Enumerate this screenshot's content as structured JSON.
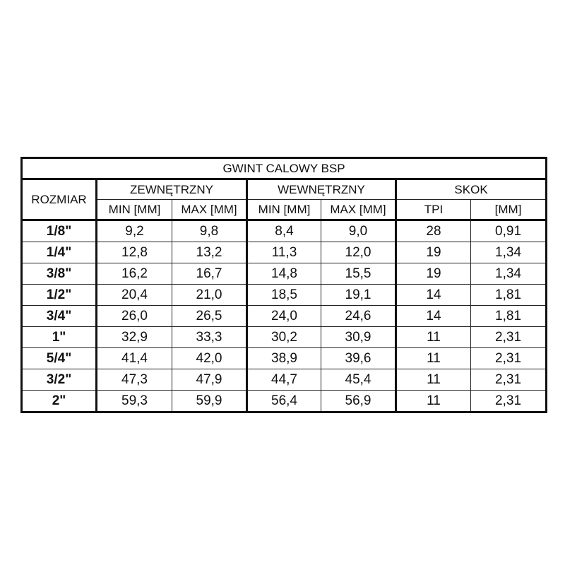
{
  "table": {
    "title": "GWINT CALOWY BSP",
    "size_header": "ROZMIAR",
    "groups": [
      "ZEWNĘTRZNY",
      "WEWNĘTRZNY",
      "SKOK"
    ],
    "subheaders": [
      "MIN [MM]",
      "MAX [MM]",
      "MIN [MM]",
      "MAX [MM]",
      "TPI",
      "[MM]"
    ],
    "rows": [
      [
        "1/8\"",
        "9,2",
        "9,8",
        "8,4",
        "9,0",
        "28",
        "0,91"
      ],
      [
        "1/4\"",
        "12,8",
        "13,2",
        "11,3",
        "12,0",
        "19",
        "1,34"
      ],
      [
        "3/8\"",
        "16,2",
        "16,7",
        "14,8",
        "15,5",
        "19",
        "1,34"
      ],
      [
        "1/2\"",
        "20,4",
        "21,0",
        "18,5",
        "19,1",
        "14",
        "1,81"
      ],
      [
        "3/4\"",
        "26,0",
        "26,5",
        "24,0",
        "24,6",
        "14",
        "1,81"
      ],
      [
        "1\"",
        "32,9",
        "33,3",
        "30,2",
        "30,9",
        "11",
        "2,31"
      ],
      [
        "5/4\"",
        "41,4",
        "42,0",
        "38,9",
        "39,6",
        "11",
        "2,31"
      ],
      [
        "3/2\"",
        "47,3",
        "47,9",
        "44,7",
        "45,4",
        "11",
        "2,31"
      ],
      [
        "2\"",
        "59,3",
        "59,9",
        "56,4",
        "56,9",
        "11",
        "2,31"
      ]
    ]
  }
}
